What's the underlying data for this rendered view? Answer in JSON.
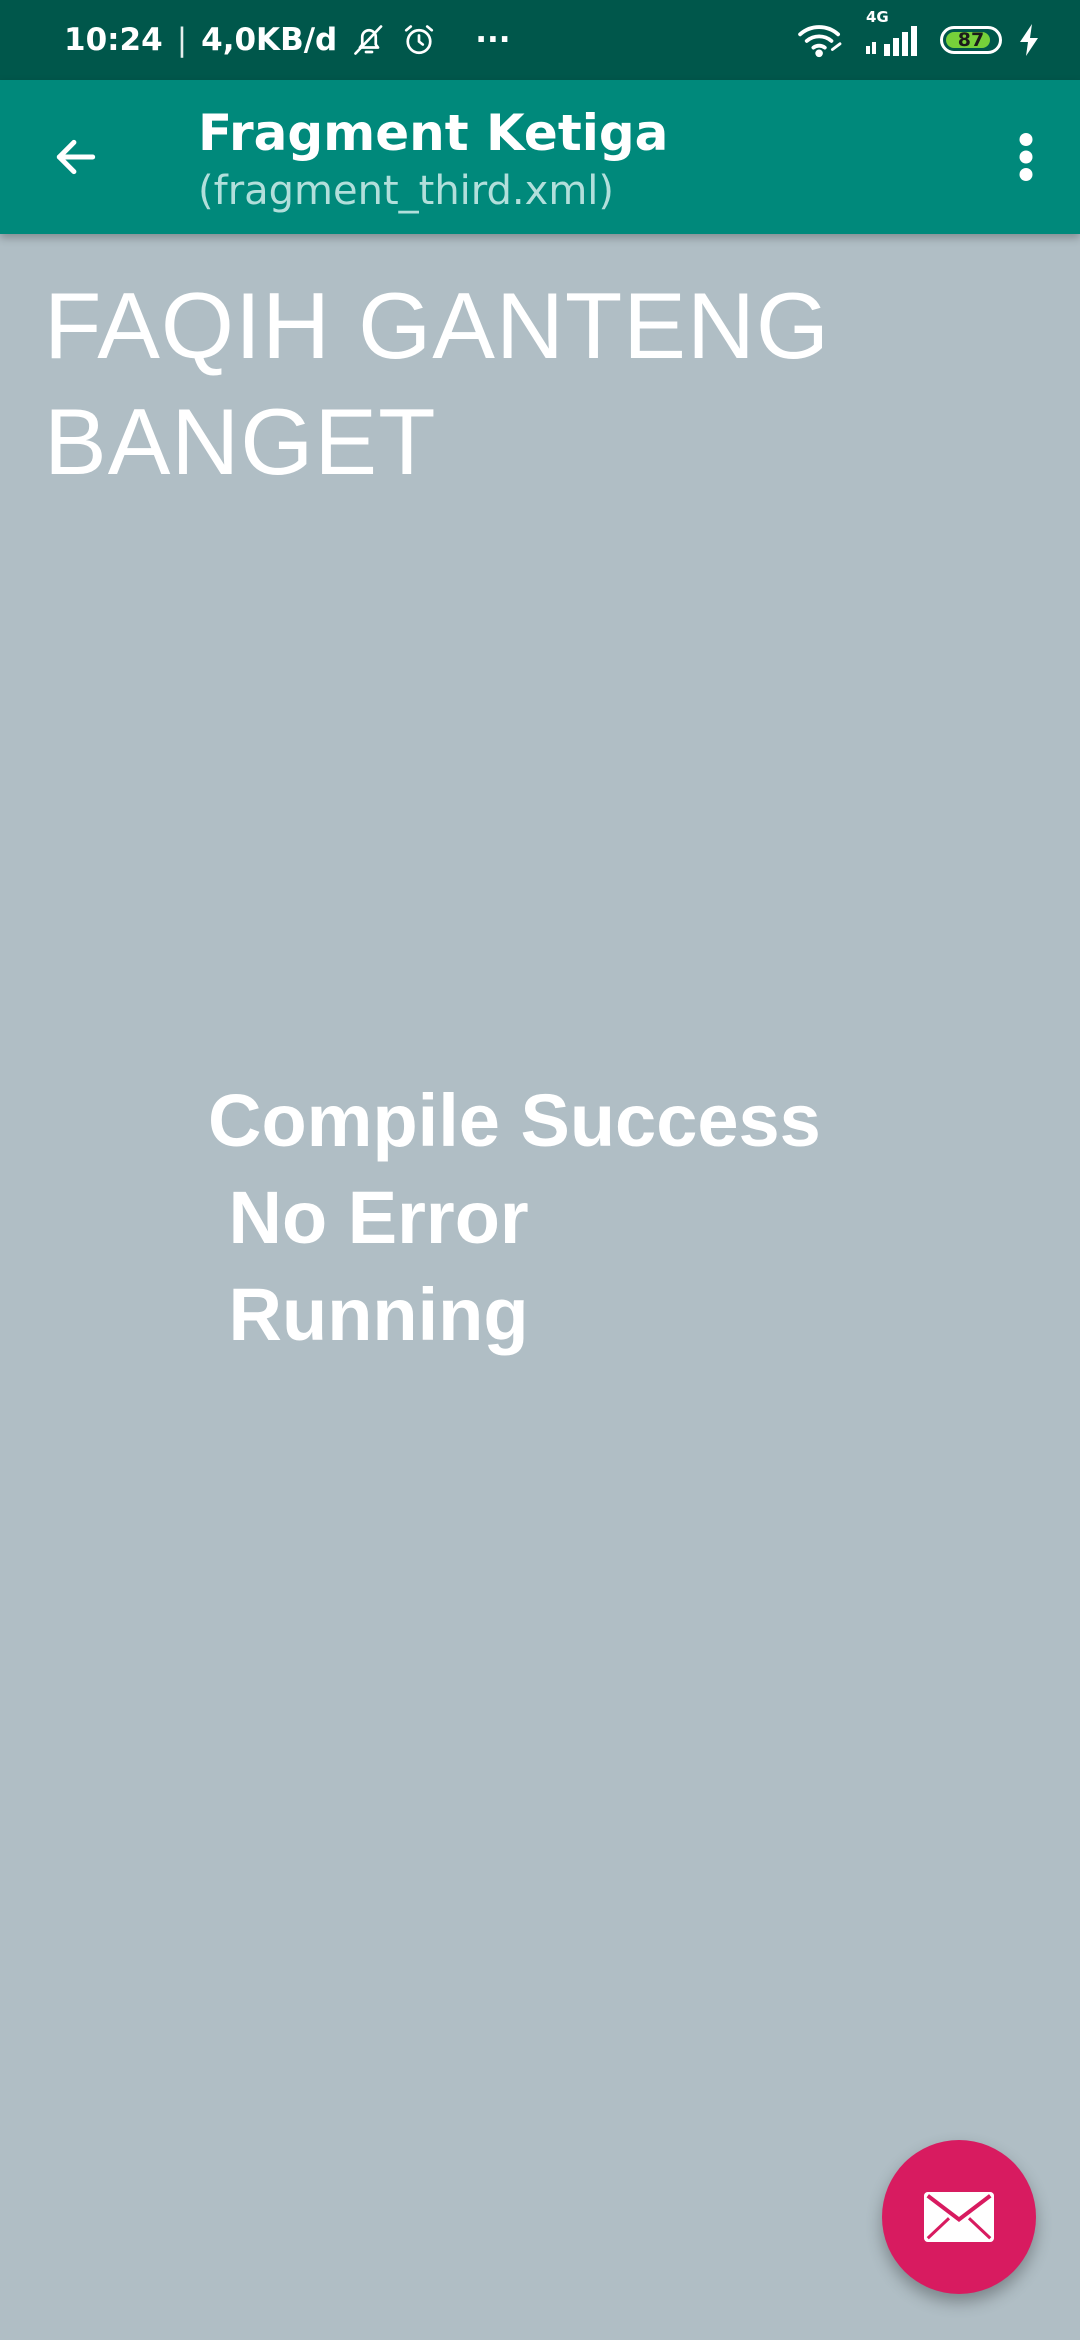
{
  "status_bar": {
    "time": "10:24",
    "network_speed": "4,0KB/d",
    "more_indicator": "···",
    "network_type": "4G",
    "battery_level": 87,
    "battery_label": "87",
    "icons": [
      "bell-off-icon",
      "alarm-icon",
      "wifi-icon",
      "signal-icon",
      "battery-icon",
      "charging-bolt-icon"
    ]
  },
  "app_bar": {
    "title": "Fragment Ketiga",
    "subtitle": "(fragment_third.xml)",
    "back_icon": "arrow-back-icon",
    "menu_icon": "more-vert-icon",
    "background_color": "#00897b"
  },
  "content": {
    "headline_line1": "FAQIH GANTENG",
    "headline_line2": "BANGET",
    "message_line1": "Compile Success",
    "message_line2": " No Error",
    "message_line3": " Running",
    "background_color": "#b0bec5"
  },
  "fab": {
    "icon": "email-icon",
    "color": "#d81b60"
  }
}
